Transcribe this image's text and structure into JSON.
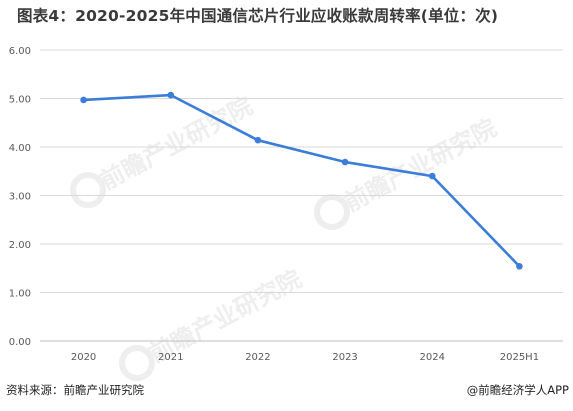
{
  "title": "图表4：2020-2025年中国通信芯片行业应收账款周转率(单位：次)",
  "source": "资料来源：前瞻产业研究院",
  "brand": "@前瞻经济学人APP",
  "watermark": "前瞻产业研究院",
  "chart_data": {
    "type": "line",
    "categories": [
      "2020",
      "2021",
      "2022",
      "2023",
      "2024",
      "2025H1"
    ],
    "series": [
      {
        "values": [
          4.97,
          5.07,
          4.14,
          3.69,
          3.4,
          1.54
        ]
      }
    ],
    "yticks": [
      "0.00",
      "1.00",
      "2.00",
      "3.00",
      "4.00",
      "5.00",
      "6.00"
    ],
    "ylim": [
      0,
      6
    ],
    "grid": true,
    "line_color": "#3b7dd8"
  }
}
